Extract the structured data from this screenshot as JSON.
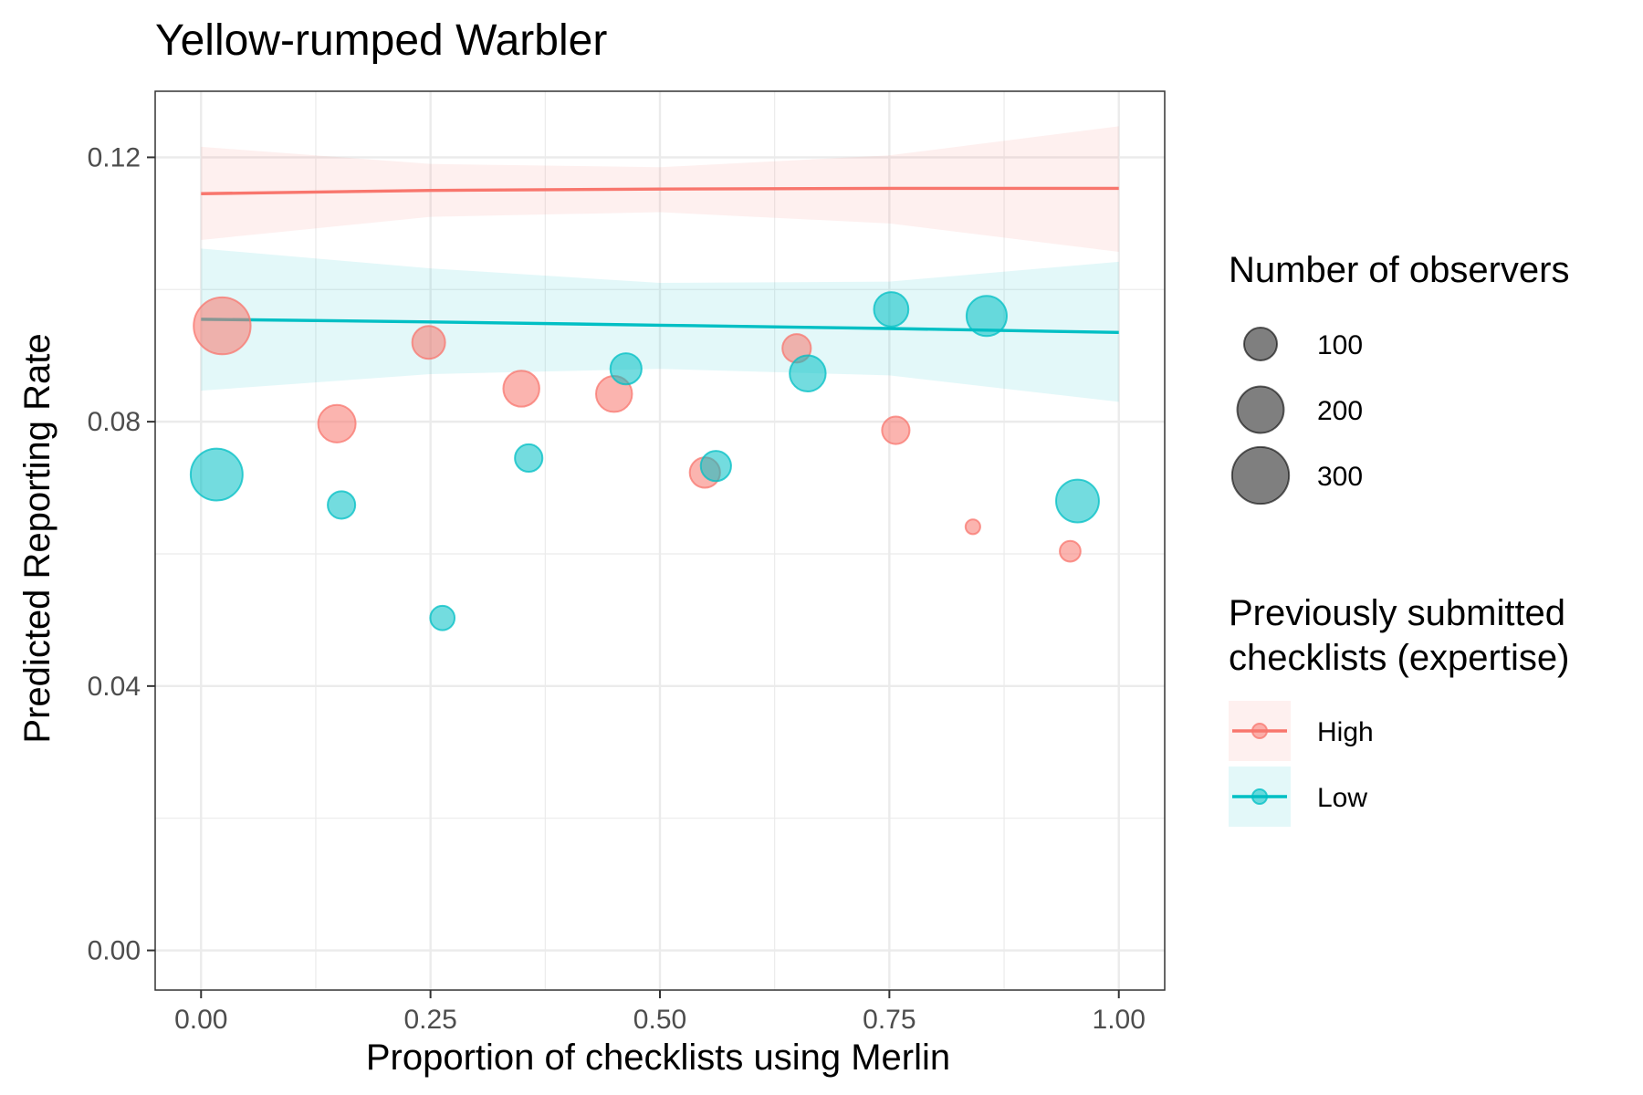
{
  "chart_data": {
    "type": "scatter",
    "title": "Yellow-rumped Warbler",
    "xlabel": "Proportion of checklists using Merlin",
    "ylabel": "Predicted Reporting Rate",
    "xlim": [
      -0.05,
      1.05
    ],
    "ylim": [
      -0.006,
      0.13
    ],
    "x_ticks": [
      0.0,
      0.25,
      0.5,
      0.75,
      1.0
    ],
    "x_tick_labels": [
      "0.00",
      "0.25",
      "0.50",
      "0.75",
      "1.00"
    ],
    "y_ticks": [
      0.0,
      0.04,
      0.08,
      0.12
    ],
    "y_tick_labels": [
      "0.00",
      "0.04",
      "0.08",
      "0.12"
    ],
    "grid": true,
    "legend_placement": "right",
    "size_legend": {
      "title": "Number of observers",
      "entries": [
        {
          "label": "100",
          "value": 100
        },
        {
          "label": "200",
          "value": 200
        },
        {
          "label": "300",
          "value": 300
        }
      ]
    },
    "color_legend": {
      "title_lines": [
        "Previously submitted",
        "checklists (expertise)"
      ],
      "entries": [
        {
          "label": "High",
          "color": "#F8766D"
        },
        {
          "label": "Low",
          "color": "#00BFC4"
        }
      ]
    },
    "series": [
      {
        "name": "High",
        "color": "#F8766D",
        "fill": "#FFF0EF",
        "trend": {
          "x": [
            0.0,
            0.25,
            0.5,
            0.75,
            1.0
          ],
          "y": [
            0.1145,
            0.115,
            0.1152,
            0.1153,
            0.1153
          ]
        },
        "ribbon": {
          "x": [
            0.0,
            0.25,
            0.5,
            0.75,
            1.0
          ],
          "lower": [
            0.1075,
            0.111,
            0.1117,
            0.11,
            0.1057
          ],
          "upper": [
            0.1216,
            0.119,
            0.1185,
            0.1203,
            0.1247
          ]
        },
        "points": [
          {
            "x": 0.023,
            "y": 0.0945,
            "size": 300
          },
          {
            "x": 0.148,
            "y": 0.0797,
            "size": 130
          },
          {
            "x": 0.248,
            "y": 0.092,
            "size": 100
          },
          {
            "x": 0.349,
            "y": 0.085,
            "size": 120
          },
          {
            "x": 0.45,
            "y": 0.0842,
            "size": 120
          },
          {
            "x": 0.549,
            "y": 0.0723,
            "size": 85
          },
          {
            "x": 0.649,
            "y": 0.0911,
            "size": 75
          },
          {
            "x": 0.757,
            "y": 0.0787,
            "size": 70
          },
          {
            "x": 0.841,
            "y": 0.0641,
            "size": 20
          },
          {
            "x": 0.947,
            "y": 0.0604,
            "size": 40
          }
        ]
      },
      {
        "name": "Low",
        "color": "#00BFC4",
        "fill": "#E3F6F8",
        "trend": {
          "x": [
            0.0,
            0.25,
            0.5,
            0.75,
            1.0
          ],
          "y": [
            0.0955,
            0.0951,
            0.0946,
            0.0941,
            0.0935
          ]
        },
        "ribbon": {
          "x": [
            0.0,
            0.25,
            0.5,
            0.75,
            1.0
          ],
          "lower": [
            0.0847,
            0.0872,
            0.088,
            0.087,
            0.083
          ],
          "upper": [
            0.1062,
            0.1032,
            0.101,
            0.1012,
            0.1042
          ]
        },
        "points": [
          {
            "x": 0.017,
            "y": 0.072,
            "size": 250
          },
          {
            "x": 0.153,
            "y": 0.0674,
            "size": 70
          },
          {
            "x": 0.263,
            "y": 0.0503,
            "size": 55
          },
          {
            "x": 0.357,
            "y": 0.0745,
            "size": 70
          },
          {
            "x": 0.463,
            "y": 0.088,
            "size": 90
          },
          {
            "x": 0.561,
            "y": 0.0733,
            "size": 85
          },
          {
            "x": 0.661,
            "y": 0.0873,
            "size": 120
          },
          {
            "x": 0.752,
            "y": 0.097,
            "size": 110
          },
          {
            "x": 0.856,
            "y": 0.096,
            "size": 150
          },
          {
            "x": 0.955,
            "y": 0.068,
            "size": 170
          }
        ]
      }
    ]
  }
}
